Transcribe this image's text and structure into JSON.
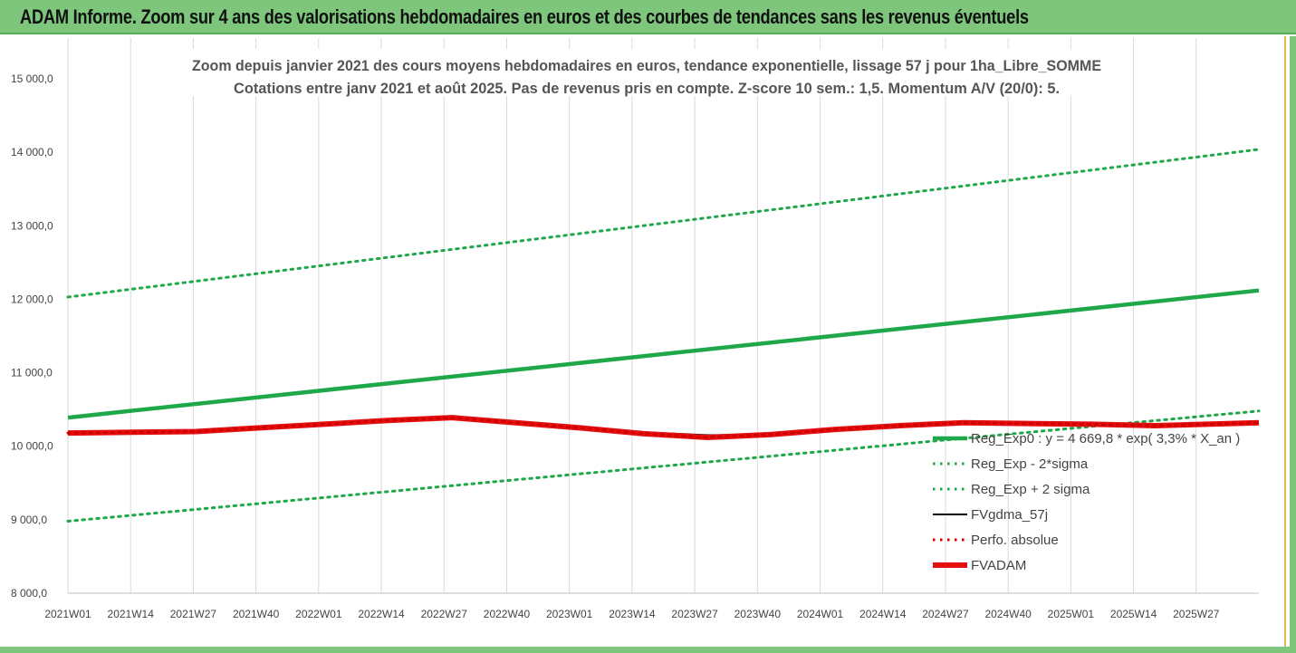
{
  "banner": {
    "title": "ADAM Informe. Zoom sur 4 ans des valorisations hebdomadaires en euros et des courbes de tendances sans les revenus éventuels"
  },
  "colors": {
    "banner_bg": "#7dc67b",
    "reg_exp": "#1ea84a",
    "fvgdma": "#000000",
    "perfo": "#d40000",
    "fvadam": "#e31010",
    "grid": "#d9d9d9"
  },
  "chart_data": {
    "type": "line",
    "title": "Zoom depuis janvier 2021 des cours moyens hebdomadaires en euros, tendance exponentielle, lissage 57 j pour 1ha_Libre_SOMME",
    "subtitle": "Cotations entre janv 2021 et août 2025.  Pas de revenus pris en compte. Z-score 10 sem.: 1,5. Momentum A/V (20/0): 5.",
    "xlabel": "",
    "ylabel": "",
    "ylim": [
      8000,
      15000
    ],
    "yticks": [
      "8 000,0",
      "9 000,0",
      "10 000,0",
      "11 000,0",
      "12 000,0",
      "13 000,0",
      "14 000,0",
      "15 000,0"
    ],
    "ytick_values": [
      8000,
      9000,
      10000,
      11000,
      12000,
      13000,
      14000,
      15000
    ],
    "xticks": [
      "2021W01",
      "2021W14",
      "2021W27",
      "2021W40",
      "2022W01",
      "2022W14",
      "2022W27",
      "2022W40",
      "2023W01",
      "2023W14",
      "2023W27",
      "2023W40",
      "2024W01",
      "2024W14",
      "2024W27",
      "2024W40",
      "2025W01",
      "2025W14",
      "2025W27"
    ],
    "grid": "vertical",
    "legend_position": "right",
    "n_weeks": 243,
    "series": [
      {
        "name": "Reg_Exp0 : y = 4 669,8 * exp( 3,3% *  X_an )",
        "style": "solid-thick",
        "color": "#1ea84a",
        "points": [
          [
            0,
            10390
          ],
          [
            242,
            12120
          ]
        ]
      },
      {
        "name": "Reg_Exp - 2*sigma",
        "style": "dotted",
        "color": "#1ea84a",
        "points": [
          [
            0,
            8980
          ],
          [
            242,
            10480
          ]
        ]
      },
      {
        "name": "Reg_Exp + 2 sigma",
        "style": "dotted",
        "color": "#1ea84a",
        "points": [
          [
            0,
            12030
          ],
          [
            242,
            14040
          ]
        ]
      },
      {
        "name": "FVgdma_57j",
        "style": "solid",
        "color": "#000000",
        "points": [
          [
            0,
            10180
          ],
          [
            13,
            10190
          ],
          [
            26,
            10200
          ],
          [
            39,
            10250
          ],
          [
            52,
            10300
          ],
          [
            65,
            10350
          ],
          [
            78,
            10370
          ],
          [
            91,
            10320
          ],
          [
            104,
            10250
          ],
          [
            117,
            10190
          ],
          [
            130,
            10150
          ],
          [
            143,
            10160
          ],
          [
            156,
            10230
          ],
          [
            169,
            10280
          ],
          [
            182,
            10320
          ],
          [
            195,
            10310
          ],
          [
            208,
            10300
          ],
          [
            221,
            10290
          ],
          [
            242,
            10310
          ]
        ]
      },
      {
        "name": "Perfo. absolue",
        "style": "dotted",
        "color": "#d40000",
        "points": [
          [
            0,
            10180
          ],
          [
            13,
            10190
          ],
          [
            26,
            10200
          ],
          [
            39,
            10250
          ],
          [
            52,
            10300
          ],
          [
            65,
            10350
          ],
          [
            78,
            10390
          ],
          [
            91,
            10320
          ],
          [
            104,
            10250
          ],
          [
            117,
            10170
          ],
          [
            130,
            10120
          ],
          [
            143,
            10160
          ],
          [
            156,
            10230
          ],
          [
            169,
            10280
          ],
          [
            182,
            10320
          ],
          [
            195,
            10310
          ],
          [
            208,
            10300
          ],
          [
            221,
            10280
          ],
          [
            242,
            10320
          ]
        ]
      },
      {
        "name": "FVADAM",
        "style": "solid-thick",
        "color": "#e31010",
        "points": [
          [
            0,
            10180
          ],
          [
            13,
            10190
          ],
          [
            26,
            10200
          ],
          [
            39,
            10250
          ],
          [
            52,
            10300
          ],
          [
            65,
            10350
          ],
          [
            78,
            10390
          ],
          [
            91,
            10320
          ],
          [
            104,
            10250
          ],
          [
            117,
            10170
          ],
          [
            130,
            10120
          ],
          [
            143,
            10160
          ],
          [
            156,
            10230
          ],
          [
            169,
            10280
          ],
          [
            182,
            10320
          ],
          [
            195,
            10310
          ],
          [
            208,
            10300
          ],
          [
            221,
            10280
          ],
          [
            242,
            10320
          ]
        ]
      }
    ]
  }
}
